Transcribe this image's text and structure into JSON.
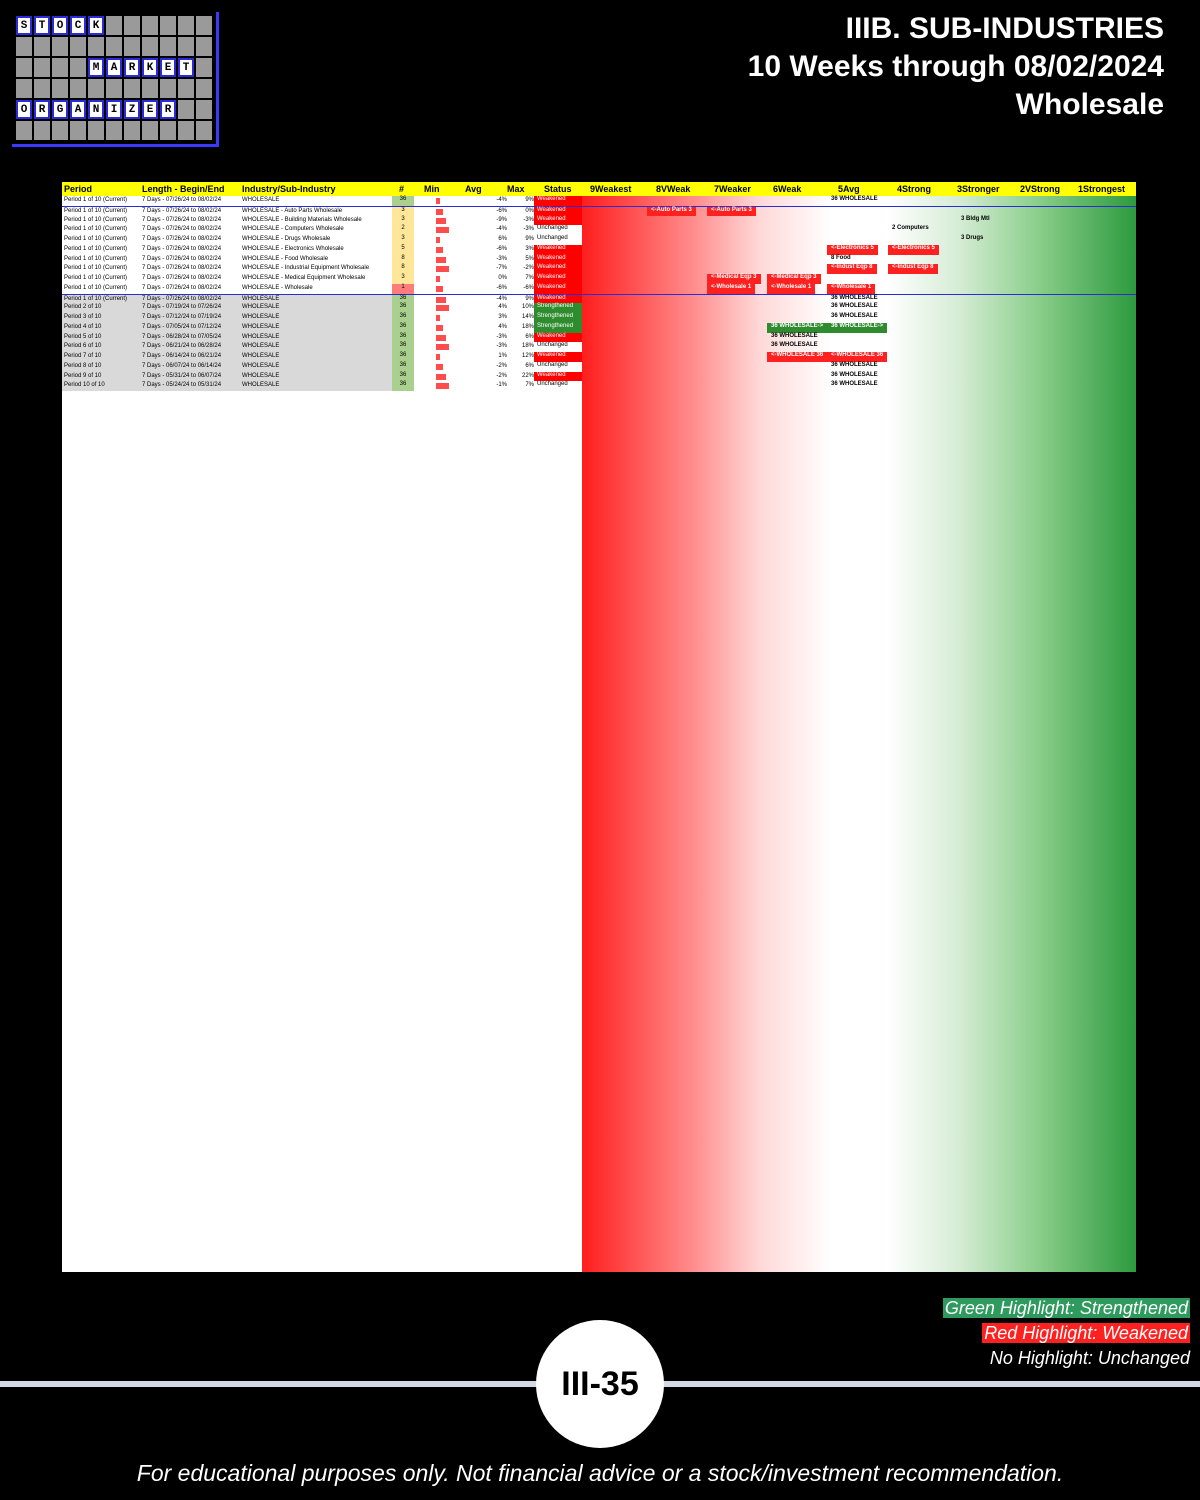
{
  "logo": {
    "words": [
      "STOCK",
      "MARKET",
      "ORGANIZER"
    ]
  },
  "title": {
    "line1": "IIIB. SUB-INDUSTRIES",
    "line2": "10 Weeks through 08/02/2024",
    "line3": "Wholesale"
  },
  "table": {
    "headers": [
      "Period",
      "Length - Begin/End",
      "Industry/Sub-Industry",
      "#",
      "Min",
      "Avg",
      "Max",
      "Status",
      "9Weakest",
      "8VWeak",
      "7Weaker",
      "6Weak",
      "5Avg",
      "4Strong",
      "3Stronger",
      "2VStrong",
      "1Strongest"
    ],
    "rows": [
      {
        "p": "Period 1 of 10 (Current)",
        "l": "7 Days - 07/26/24 to 08/02/24",
        "i": "WHOLESALE",
        "n": "36",
        "a": "-4%",
        "m": "9%",
        "s": "Weakened"
      },
      {
        "p": "Period 1 of 10 (Current)",
        "l": "7 Days - 07/26/24 to 08/02/24",
        "i": "WHOLESALE - Auto Parts Wholesale",
        "n": "3",
        "a": "-6%",
        "m": "0%",
        "s": "Weakened"
      },
      {
        "p": "Period 1 of 10 (Current)",
        "l": "7 Days - 07/26/24 to 08/02/24",
        "i": "WHOLESALE - Building Materials Wholesale",
        "n": "3",
        "a": "-9%",
        "m": "-3%",
        "s": "Weakened"
      },
      {
        "p": "Period 1 of 10 (Current)",
        "l": "7 Days - 07/26/24 to 08/02/24",
        "i": "WHOLESALE - Computers Wholesale",
        "n": "2",
        "a": "-4%",
        "m": "-3%",
        "s": "Unchanged"
      },
      {
        "p": "Period 1 of 10 (Current)",
        "l": "7 Days - 07/26/24 to 08/02/24",
        "i": "WHOLESALE - Drugs Wholesale",
        "n": "3",
        "a": "6%",
        "m": "9%",
        "s": "Unchanged"
      },
      {
        "p": "Period 1 of 10 (Current)",
        "l": "7 Days - 07/26/24 to 08/02/24",
        "i": "WHOLESALE - Electronics Wholesale",
        "n": "5",
        "a": "-6%",
        "m": "3%",
        "s": "Weakened"
      },
      {
        "p": "Period 1 of 10 (Current)",
        "l": "7 Days - 07/26/24 to 08/02/24",
        "i": "WHOLESALE - Food Wholesale",
        "n": "8",
        "a": "-3%",
        "m": "5%",
        "s": "Weakened"
      },
      {
        "p": "Period 1 of 10 (Current)",
        "l": "7 Days - 07/26/24 to 08/02/24",
        "i": "WHOLESALE - Industrial Equipment Wholesale",
        "n": "8",
        "a": "-7%",
        "m": "-2%",
        "s": "Weakened"
      },
      {
        "p": "Period 1 of 10 (Current)",
        "l": "7 Days - 07/26/24 to 08/02/24",
        "i": "WHOLESALE - Medical Equipment Wholesale",
        "n": "3",
        "a": "0%",
        "m": "7%",
        "s": "Weakened"
      },
      {
        "p": "Period 1 of 10 (Current)",
        "l": "7 Days - 07/26/24 to 08/02/24",
        "i": "WHOLESALE - Wholesale",
        "n": "1",
        "a": "-6%",
        "m": "-6%",
        "s": "Weakened"
      },
      {
        "p": "Period 1 of 10 (Current)",
        "l": "7 Days - 07/26/24 to 08/02/24",
        "i": "WHOLESALE",
        "n": "36",
        "a": "-4%",
        "m": "9%",
        "s": "Weakened"
      },
      {
        "p": "Period 2 of 10",
        "l": "7 Days - 07/19/24 to 07/26/24",
        "i": "WHOLESALE",
        "n": "36",
        "a": "4%",
        "m": "10%",
        "s": "Strengthened"
      },
      {
        "p": "Period 3 of 10",
        "l": "7 Days - 07/12/24 to 07/19/24",
        "i": "WHOLESALE",
        "n": "36",
        "a": "3%",
        "m": "14%",
        "s": "Strengthened"
      },
      {
        "p": "Period 4 of 10",
        "l": "7 Days - 07/05/24 to 07/12/24",
        "i": "WHOLESALE",
        "n": "36",
        "a": "4%",
        "m": "18%",
        "s": "Strengthened"
      },
      {
        "p": "Period 5 of 10",
        "l": "7 Days - 06/28/24 to 07/05/24",
        "i": "WHOLESALE",
        "n": "36",
        "a": "-3%",
        "m": "6%",
        "s": "Weakened"
      },
      {
        "p": "Period 6 of 10",
        "l": "7 Days - 06/21/24 to 06/28/24",
        "i": "WHOLESALE",
        "n": "36",
        "a": "-3%",
        "m": "18%",
        "s": "Unchanged"
      },
      {
        "p": "Period 7 of 10",
        "l": "7 Days - 06/14/24 to 06/21/24",
        "i": "WHOLESALE",
        "n": "36",
        "a": "1%",
        "m": "12%",
        "s": "Weakened"
      },
      {
        "p": "Period 8 of 10",
        "l": "7 Days - 06/07/24 to 06/14/24",
        "i": "WHOLESALE",
        "n": "36",
        "a": "-2%",
        "m": "6%",
        "s": "Unchanged"
      },
      {
        "p": "Period 9 of 10",
        "l": "7 Days - 05/31/24 to 06/07/24",
        "i": "WHOLESALE",
        "n": "36",
        "a": "-2%",
        "m": "22%",
        "s": "Weakened"
      },
      {
        "p": "Period 10 of 10",
        "l": "7 Days - 05/24/24 to 05/31/24",
        "i": "WHOLESALE",
        "n": "36",
        "a": "-1%",
        "m": "7%",
        "s": "Unchanged"
      }
    ],
    "tags": [
      {
        "row": 0,
        "col": 12,
        "text": "36 WHOLESALE",
        "k": ""
      },
      {
        "row": 1,
        "col": 9,
        "text": "<-Auto Parts 3",
        "k": "W"
      },
      {
        "row": 1,
        "col": 10,
        "text": "<-Auto Parts 3",
        "k": "W"
      },
      {
        "row": 2,
        "col": 14,
        "text": "3 Bldg Mtl",
        "k": ""
      },
      {
        "row": 3,
        "col": 13,
        "text": "2 Computers",
        "k": ""
      },
      {
        "row": 4,
        "col": 14,
        "text": "3 Drugs",
        "k": ""
      },
      {
        "row": 5,
        "col": 12,
        "text": "<-Electronics 5",
        "k": "W"
      },
      {
        "row": 5,
        "col": 13,
        "text": "<-Electronics 5",
        "k": "W"
      },
      {
        "row": 6,
        "col": 12,
        "text": "8 Food",
        "k": ""
      },
      {
        "row": 7,
        "col": 12,
        "text": "<-Indust Eqp 8",
        "k": "W"
      },
      {
        "row": 7,
        "col": 13,
        "text": "<-Indust Eqp 8",
        "k": "W"
      },
      {
        "row": 8,
        "col": 10,
        "text": "<-Medical Eqp 3",
        "k": "W"
      },
      {
        "row": 8,
        "col": 11,
        "text": "<-Medical Eqp 3",
        "k": "W"
      },
      {
        "row": 9,
        "col": 10,
        "text": "<-Wholesale 1",
        "k": "W"
      },
      {
        "row": 9,
        "col": 11,
        "text": "<-Wholesale 1",
        "k": "W"
      },
      {
        "row": 9,
        "col": 12,
        "text": "<-Wholesale 1",
        "k": "W"
      },
      {
        "row": 10,
        "col": 12,
        "text": "36 WHOLESALE",
        "k": ""
      },
      {
        "row": 11,
        "col": 12,
        "text": "36 WHOLESALE",
        "k": ""
      },
      {
        "row": 12,
        "col": 12,
        "text": "36 WHOLESALE",
        "k": ""
      },
      {
        "row": 13,
        "col": 11,
        "text": "36 WHOLESALE->",
        "k": "S"
      },
      {
        "row": 13,
        "col": 12,
        "text": "36 WHOLESALE->",
        "k": "S"
      },
      {
        "row": 14,
        "col": 11,
        "text": "36 WHOLESALE",
        "k": ""
      },
      {
        "row": 15,
        "col": 11,
        "text": "36 WHOLESALE",
        "k": ""
      },
      {
        "row": 16,
        "col": 11,
        "text": "<-WHOLESALE 36",
        "k": "W"
      },
      {
        "row": 16,
        "col": 12,
        "text": "<-WHOLESALE 36",
        "k": "W"
      },
      {
        "row": 17,
        "col": 12,
        "text": "36 WHOLESALE",
        "k": ""
      },
      {
        "row": 18,
        "col": 12,
        "text": "36 WHOLESALE",
        "k": ""
      },
      {
        "row": 19,
        "col": 12,
        "text": "36 WHOLESALE",
        "k": ""
      }
    ]
  },
  "legend": {
    "green": "Green Highlight: Strengthened",
    "red": "Red Highlight: Weakened",
    "none": "No Highlight: Unchanged"
  },
  "page_number": "III-35",
  "footer": "For educational purposes only. Not financial advice or a stock/investment recommendation."
}
